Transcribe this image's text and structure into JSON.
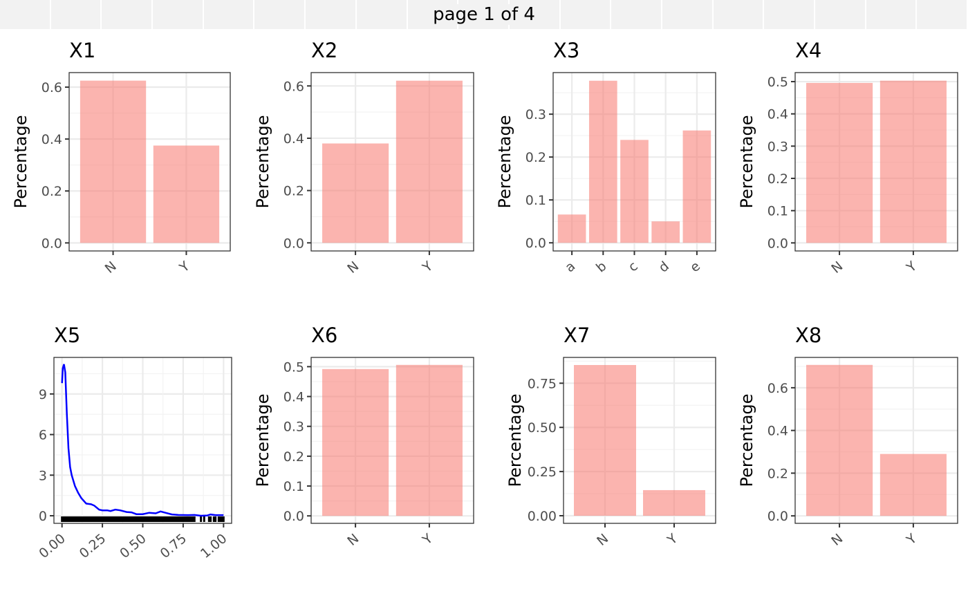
{
  "header": {
    "page_label": "page 1 of 4"
  },
  "colors": {
    "bar": "#F8766D",
    "density": "#0000FF",
    "rug": "#000000"
  },
  "chart_data": [
    {
      "type": "bar",
      "title": "X1",
      "ylabel": "Percentage",
      "categories": [
        "N",
        "Y"
      ],
      "values": [
        0.625,
        0.375
      ],
      "ylim": [
        -0.031,
        0.656
      ],
      "yticks": [
        0,
        0.2,
        0.4,
        0.6
      ],
      "ytick_labels": [
        "0.0",
        "0.2",
        "0.4",
        "0.6"
      ]
    },
    {
      "type": "bar",
      "title": "X2",
      "ylabel": "Percentage",
      "categories": [
        "N",
        "Y"
      ],
      "values": [
        0.38,
        0.62
      ],
      "ylim": [
        -0.031,
        0.651
      ],
      "yticks": [
        0,
        0.2,
        0.4,
        0.6
      ],
      "ytick_labels": [
        "0.0",
        "0.2",
        "0.4",
        "0.6"
      ]
    },
    {
      "type": "bar",
      "title": "X3",
      "ylabel": "Percentage",
      "categories": [
        "a",
        "b",
        "c",
        "d",
        "e"
      ],
      "values": [
        0.066,
        0.378,
        0.24,
        0.05,
        0.262
      ],
      "ylim": [
        -0.019,
        0.397
      ],
      "yticks": [
        0,
        0.1,
        0.2,
        0.3
      ],
      "ytick_labels": [
        "0.0",
        "0.1",
        "0.2",
        "0.3"
      ]
    },
    {
      "type": "bar",
      "title": "X4",
      "ylabel": "Percentage",
      "categories": [
        "N",
        "Y"
      ],
      "values": [
        0.496,
        0.503
      ],
      "ylim": [
        -0.025,
        0.528
      ],
      "yticks": [
        0,
        0.1,
        0.2,
        0.3,
        0.4,
        0.5
      ],
      "ytick_labels": [
        "0.0",
        "0.1",
        "0.2",
        "0.3",
        "0.4",
        "0.5"
      ]
    },
    {
      "type": "line",
      "title": "X5",
      "ylabel": "",
      "xlim": [
        -0.05,
        1.05
      ],
      "ylim": [
        -0.56,
        11.7
      ],
      "xticks": [
        0,
        0.25,
        0.5,
        0.75,
        1
      ],
      "xtick_labels": [
        "0.00",
        "0.25",
        "0.50",
        "0.75",
        "1.00"
      ],
      "yticks": [
        0,
        3,
        6,
        9
      ],
      "ytick_labels": [
        "0",
        "3",
        "6",
        "9"
      ],
      "x": [
        0,
        0.005,
        0.012,
        0.02,
        0.03,
        0.04,
        0.05,
        0.06,
        0.08,
        0.1,
        0.12,
        0.15,
        0.18,
        0.2,
        0.23,
        0.25,
        0.28,
        0.3,
        0.33,
        0.36,
        0.4,
        0.43,
        0.46,
        0.5,
        0.54,
        0.58,
        0.61,
        0.64,
        0.68,
        0.72,
        0.78,
        0.82,
        0.86,
        0.9,
        0.92,
        0.95,
        1.0
      ],
      "y": [
        9.8,
        10.9,
        11.2,
        10.6,
        7.5,
        5.0,
        3.6,
        3.0,
        2.2,
        1.7,
        1.3,
        0.9,
        0.85,
        0.75,
        0.45,
        0.4,
        0.4,
        0.35,
        0.45,
        0.4,
        0.28,
        0.25,
        0.12,
        0.12,
        0.22,
        0.18,
        0.32,
        0.22,
        0.1,
        0.06,
        0.05,
        0.06,
        0.0,
        0.02,
        0.1,
        0.05,
        0.05
      ],
      "rug": [
        0,
        0.01,
        0.02,
        0.03,
        0.04,
        0.05,
        0.06,
        0.07,
        0.08,
        0.09,
        0.1,
        0.11,
        0.12,
        0.13,
        0.14,
        0.15,
        0.16,
        0.17,
        0.18,
        0.19,
        0.2,
        0.21,
        0.22,
        0.23,
        0.24,
        0.25,
        0.26,
        0.27,
        0.28,
        0.29,
        0.3,
        0.31,
        0.32,
        0.33,
        0.34,
        0.35,
        0.36,
        0.37,
        0.38,
        0.39,
        0.4,
        0.41,
        0.42,
        0.43,
        0.44,
        0.45,
        0.46,
        0.47,
        0.48,
        0.49,
        0.5,
        0.51,
        0.52,
        0.53,
        0.54,
        0.55,
        0.56,
        0.57,
        0.58,
        0.59,
        0.6,
        0.61,
        0.62,
        0.63,
        0.64,
        0.65,
        0.66,
        0.67,
        0.68,
        0.69,
        0.7,
        0.71,
        0.72,
        0.73,
        0.74,
        0.75,
        0.76,
        0.77,
        0.78,
        0.79,
        0.8,
        0.81,
        0.82,
        0.86,
        0.88,
        0.91,
        0.92,
        0.94,
        0.95,
        0.97,
        0.98,
        0.99,
        1.0
      ]
    },
    {
      "type": "bar",
      "title": "X6",
      "ylabel": "Percentage",
      "categories": [
        "N",
        "Y"
      ],
      "values": [
        0.492,
        0.506
      ],
      "ylim": [
        -0.025,
        0.531
      ],
      "yticks": [
        0,
        0.1,
        0.2,
        0.3,
        0.4,
        0.5
      ],
      "ytick_labels": [
        "0.0",
        "0.1",
        "0.2",
        "0.3",
        "0.4",
        "0.5"
      ]
    },
    {
      "type": "bar",
      "title": "X7",
      "ylabel": "Percentage",
      "categories": [
        "N",
        "Y"
      ],
      "values": [
        0.853,
        0.145
      ],
      "ylim": [
        -0.043,
        0.896
      ],
      "yticks": [
        0,
        0.25,
        0.5,
        0.75
      ],
      "ytick_labels": [
        "0.00",
        "0.25",
        "0.50",
        "0.75"
      ]
    },
    {
      "type": "bar",
      "title": "X8",
      "ylabel": "Percentage",
      "categories": [
        "N",
        "Y"
      ],
      "values": [
        0.707,
        0.29
      ],
      "ylim": [
        -0.035,
        0.742
      ],
      "yticks": [
        0,
        0.2,
        0.4,
        0.6
      ],
      "ytick_labels": [
        "0.0",
        "0.2",
        "0.4",
        "0.6"
      ]
    }
  ]
}
